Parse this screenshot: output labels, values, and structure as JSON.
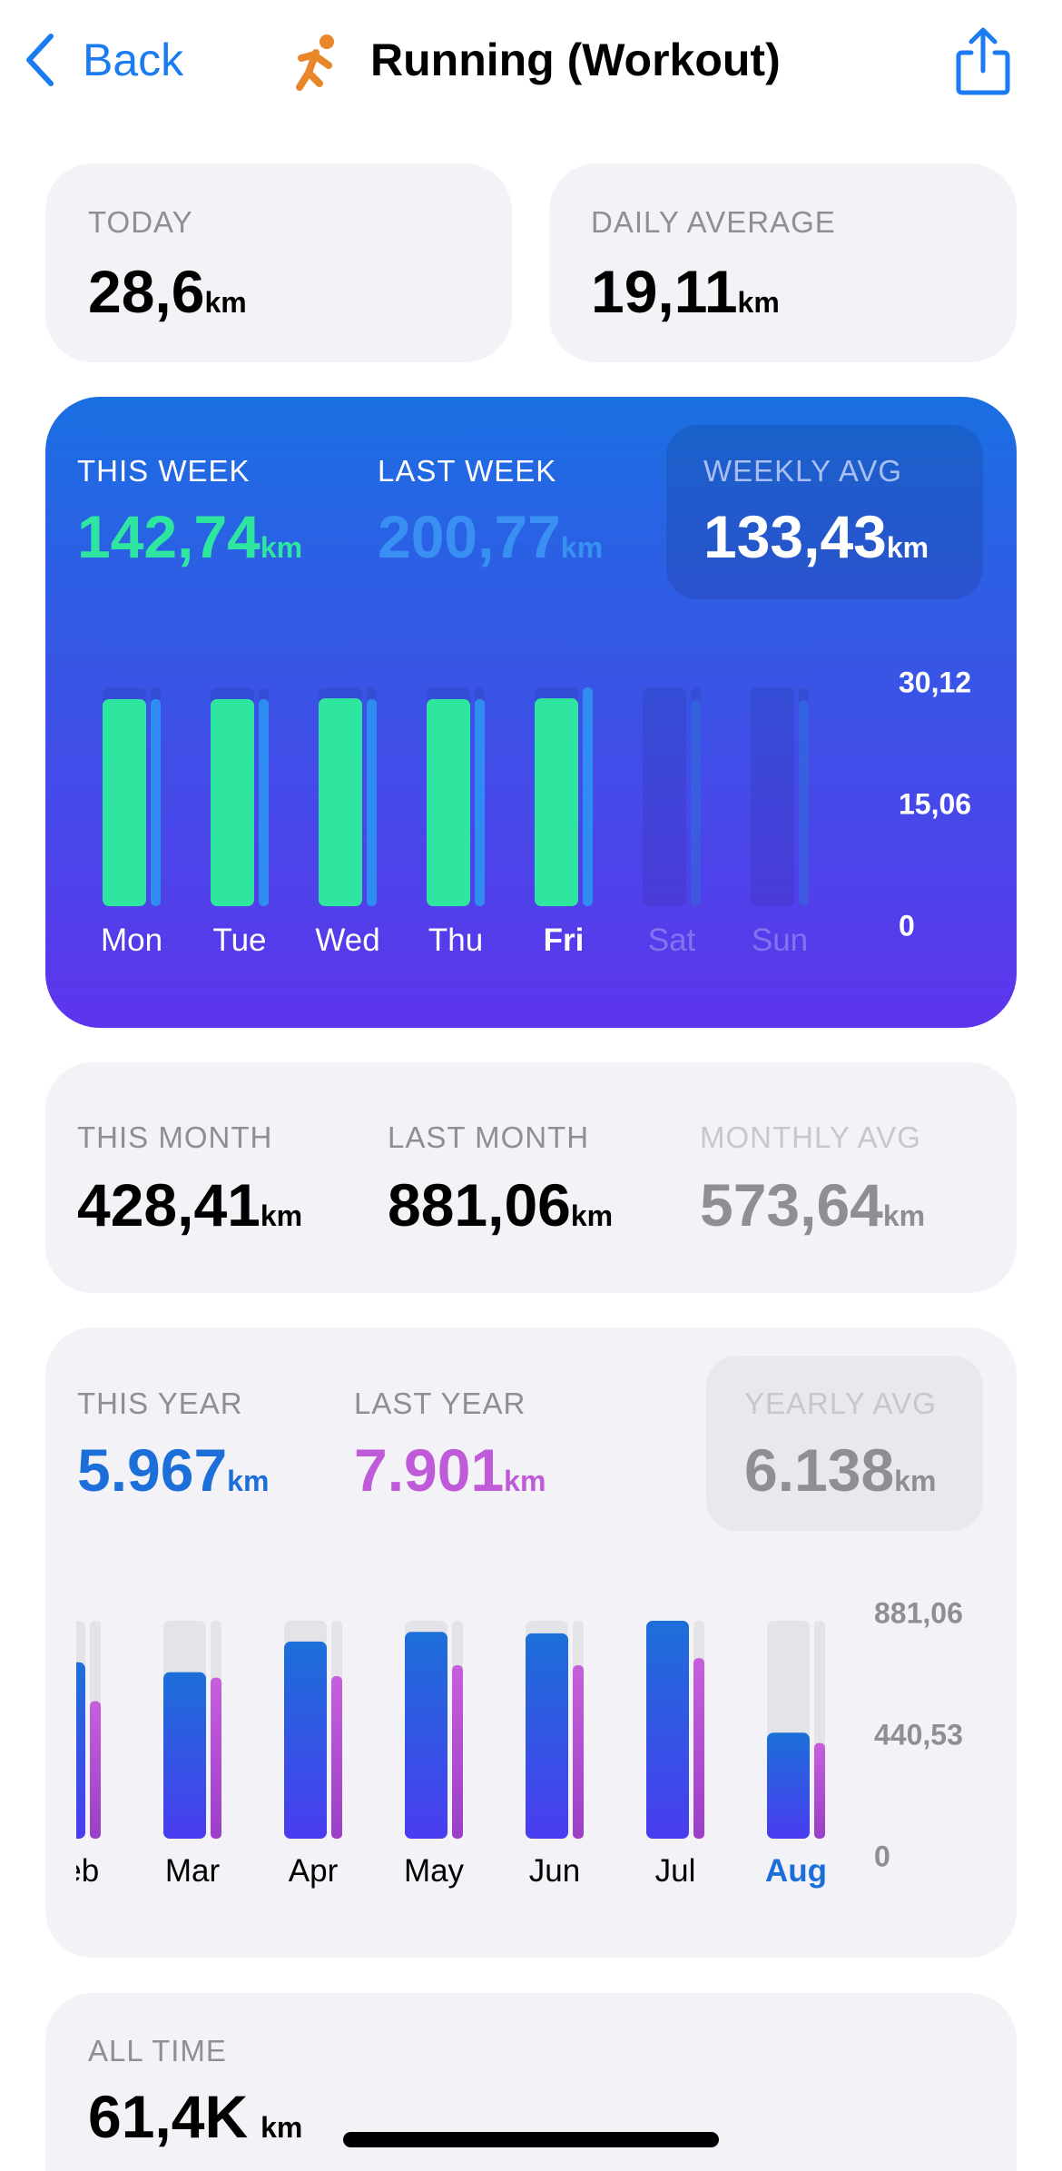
{
  "header": {
    "back": "Back",
    "title": "Running (Workout)"
  },
  "unit": "km",
  "today": {
    "label": "TODAY",
    "value": "28,6"
  },
  "daily_average": {
    "label": "DAILY AVERAGE",
    "value": "19,11"
  },
  "week": {
    "this": {
      "label": "THIS WEEK",
      "value": "142,74"
    },
    "last": {
      "label": "LAST WEEK",
      "value": "200,77"
    },
    "avg": {
      "label": "WEEKLY AVG",
      "value": "133,43"
    }
  },
  "week_chart": {
    "type": "bar",
    "categories": [
      "Mon",
      "Tue",
      "Wed",
      "Thu",
      "Fri",
      "Sat",
      "Sun"
    ],
    "series": [
      {
        "color": "#2ee6a0",
        "values": [
          28.5,
          28.5,
          28.6,
          28.5,
          28.6,
          null,
          null
        ]
      },
      {
        "color": "#2f8cf0",
        "values": [
          28.5,
          28.5,
          28.5,
          28.5,
          30.12,
          28.3,
          28.3
        ]
      }
    ],
    "ylim": [
      0,
      30.12
    ],
    "yticks": [
      {
        "value": 30.12,
        "label": "30,12"
      },
      {
        "value": 15.06,
        "label": "15,06"
      },
      0
    ],
    "highlight_category": 4
  },
  "month": {
    "this": {
      "label": "THIS MONTH",
      "value": "428,41"
    },
    "last": {
      "label": "LAST MONTH",
      "value": "881,06"
    },
    "avg": {
      "label": "MONTHLY AVG",
      "value": "573,64"
    }
  },
  "year": {
    "this": {
      "label": "THIS YEAR",
      "value": "5.967"
    },
    "last": {
      "label": "LAST YEAR",
      "value": "7.901"
    },
    "avg": {
      "label": "YEARLY AVG",
      "value": "6.138"
    }
  },
  "month_chart": {
    "type": "bar",
    "categories": [
      "Feb",
      "Mar",
      "Apr",
      "May",
      "Jun",
      "Jul",
      "Aug"
    ],
    "series": [
      {
        "color": "#1c6fd8",
        "values": [
          713,
          673,
          797,
          836,
          830,
          881.06,
          428.41
        ]
      },
      {
        "color": "#bf5ad8",
        "values": [
          556,
          651,
          657,
          701,
          701,
          730,
          387
        ]
      }
    ],
    "ylim": [
      0,
      881.06
    ],
    "yticks": [
      {
        "value": 881.06,
        "label": "881,06"
      },
      {
        "value": 440.53,
        "label": "440,53"
      },
      0
    ],
    "highlight_category": 6
  },
  "all_time": {
    "label": "ALL TIME",
    "value": "61,4K"
  }
}
